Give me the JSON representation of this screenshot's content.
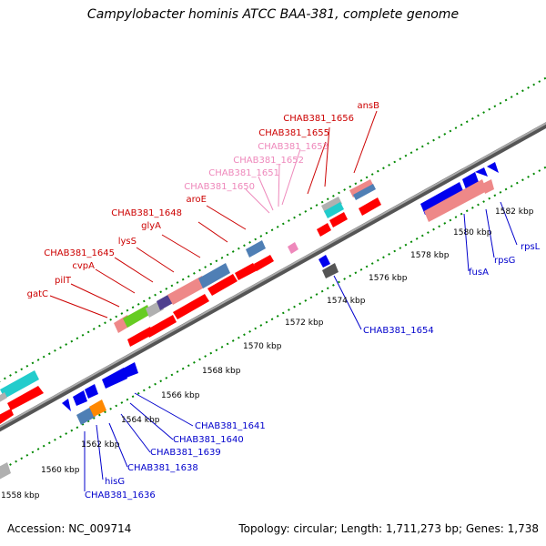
{
  "title": "Campylobacter hominis ATCC BAA-381, complete genome",
  "footer": {
    "accession": "Accession: NC_009714",
    "stats": "Topology: circular; Length: 1,711,273 bp; Genes: 1,738"
  },
  "colors": {
    "backbone": "#888888",
    "tick": "#008800",
    "upper_labels": "#cc0000",
    "upper_labels_light": "#ee88bb",
    "lower_labels": "#0000cc",
    "gene_red": "#ff0000",
    "gene_blue": "#0000ee",
    "gene_pink": "#ee8888",
    "gene_steel": "#4f7fb5",
    "gene_cyan": "#22cccc",
    "gene_gray": "#b0b0b0",
    "gene_green": "#66cc22",
    "gene_orange": "#ff8800",
    "gene_dark": "#555555"
  },
  "scale_labels": [
    "1558 kbp",
    "1560 kbp",
    "1562 kbp",
    "1564 kbp",
    "1566 kbp",
    "1568 kbp",
    "1570 kbp",
    "1572 kbp",
    "1574 kbp",
    "1576 kbp",
    "1578 kbp",
    "1580 kbp",
    "1582 kbp"
  ],
  "upper_labels": [
    {
      "text": "ansB",
      "light": false
    },
    {
      "text": "CHAB381_1656",
      "light": false
    },
    {
      "text": "CHAB381_1655",
      "light": false
    },
    {
      "text": "CHAB381_1653",
      "light": true
    },
    {
      "text": "CHAB381_1652",
      "light": true
    },
    {
      "text": "CHAB381_1651",
      "light": true
    },
    {
      "text": "CHAB381_1650",
      "light": true
    },
    {
      "text": "aroE",
      "light": false
    },
    {
      "text": "CHAB381_1648",
      "light": false
    },
    {
      "text": "glyA",
      "light": false
    },
    {
      "text": "lysS",
      "light": false
    },
    {
      "text": "CHAB381_1645",
      "light": false
    },
    {
      "text": "cvpA",
      "light": false
    },
    {
      "text": "pilT",
      "light": false
    },
    {
      "text": "gatC",
      "light": false
    }
  ],
  "lower_labels": [
    "CHAB381_1641",
    "CHAB381_1640",
    "CHAB381_1639",
    "CHAB381_1638",
    "hisG",
    "CHAB381_1636",
    "CHAB381_1654",
    "fusA",
    "rpsG",
    "rpsL"
  ]
}
